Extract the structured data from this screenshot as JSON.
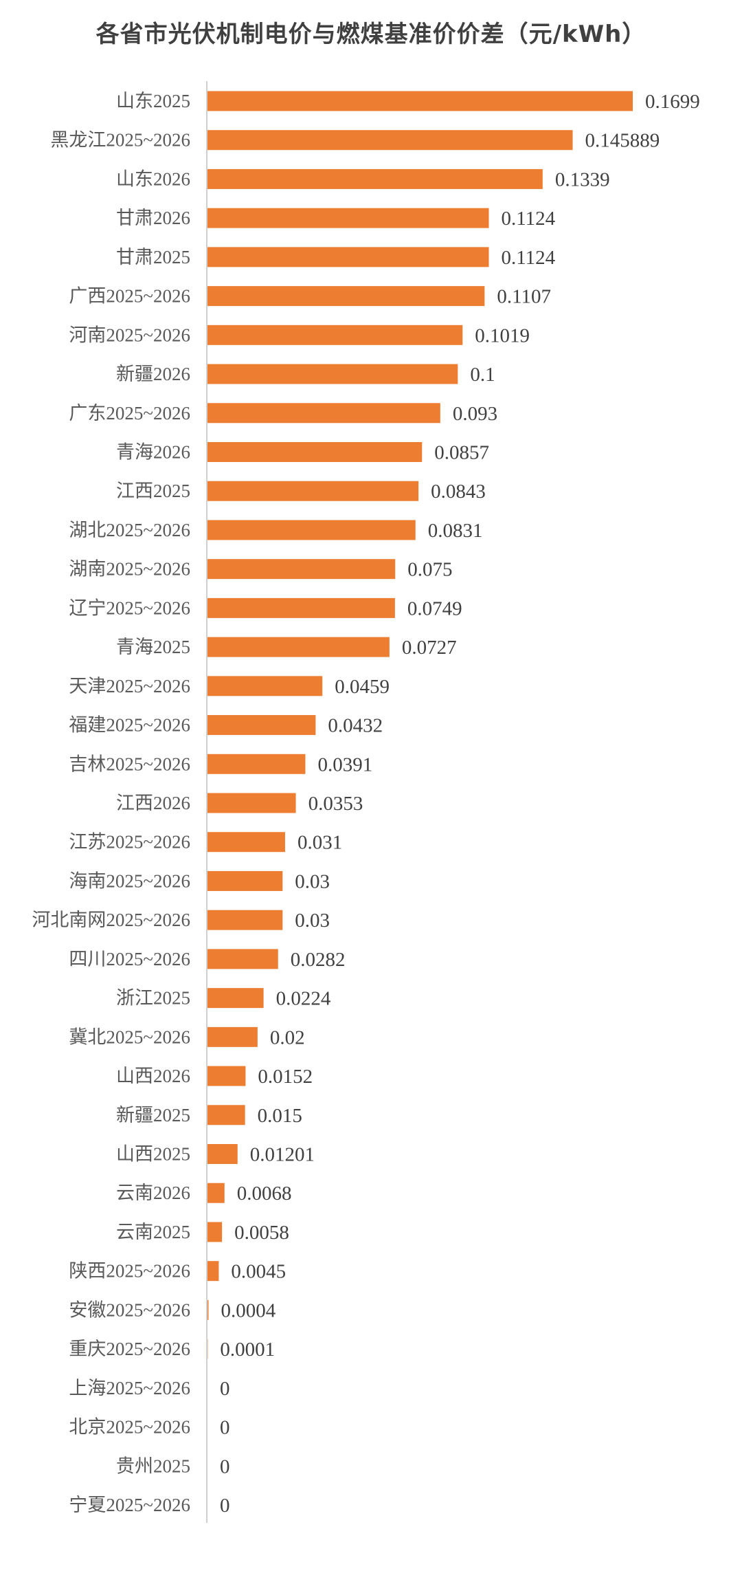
{
  "chart_data": {
    "type": "bar",
    "orientation": "horizontal",
    "title": "各省市光伏机制电价与燃煤基准价价差（元/kWh）",
    "xlabel": "",
    "ylabel": "",
    "grid": false,
    "legend": "none",
    "bar_color": "#ED7D31",
    "categories": [
      "山东2025",
      "黑龙江2025~2026",
      "山东2026",
      "甘肃2026",
      "甘肃2025",
      "广西2025~2026",
      "河南2025~2026",
      "新疆2026",
      "广东2025~2026",
      "青海2026",
      "江西2025",
      "湖北2025~2026",
      "湖南2025~2026",
      "辽宁2025~2026",
      "青海2025",
      "天津2025~2026",
      "福建2025~2026",
      "吉林2025~2026",
      "江西2026",
      "江苏2025~2026",
      "海南2025~2026",
      "河北南网2025~2026",
      "四川2025~2026",
      "浙江2025",
      "冀北2025~2026",
      "山西2026",
      "新疆2025",
      "山西2025",
      "云南2026",
      "云南2025",
      "陕西2025~2026",
      "安徽2025~2026",
      "重庆2025~2026",
      "上海2025~2026",
      "北京2025~2026",
      "贵州2025",
      "宁夏2025~2026"
    ],
    "values": [
      0.1699,
      0.145889,
      0.1339,
      0.1124,
      0.1124,
      0.1107,
      0.1019,
      0.1,
      0.093,
      0.0857,
      0.0843,
      0.0831,
      0.075,
      0.0749,
      0.0727,
      0.0459,
      0.0432,
      0.0391,
      0.0353,
      0.031,
      0.03,
      0.03,
      0.0282,
      0.0224,
      0.02,
      0.0152,
      0.015,
      0.01201,
      0.0068,
      0.0058,
      0.0045,
      0.0004,
      0.0001,
      0,
      0,
      0,
      0
    ],
    "data_labels": [
      "0.1699",
      "0.145889",
      "0.1339",
      "0.1124",
      "0.1124",
      "0.1107",
      "0.1019",
      "0.1",
      "0.093",
      "0.0857",
      "0.0843",
      "0.0831",
      "0.075",
      "0.0749",
      "0.0727",
      "0.0459",
      "0.0432",
      "0.0391",
      "0.0353",
      "0.031",
      "0.03",
      "0.03",
      "0.0282",
      "0.0224",
      "0.02",
      "0.0152",
      "0.015",
      "0.01201",
      "0.0068",
      "0.0058",
      "0.0045",
      "0.0004",
      "0.0001",
      "0",
      "0",
      "0",
      "0"
    ]
  }
}
